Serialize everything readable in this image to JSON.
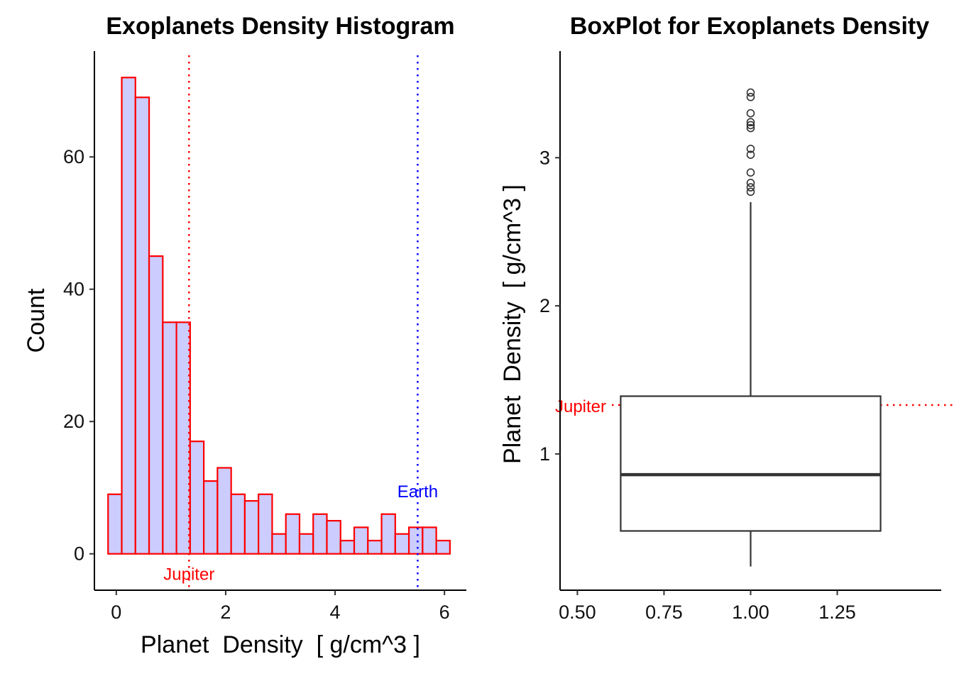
{
  "chart_data": [
    {
      "type": "bar",
      "subtype": "histogram",
      "title": "Exoplanets Density Histogram",
      "xlabel": "Planet  Density  [ g/cm^3 ]",
      "ylabel": "Count",
      "xlim": [
        -0.4,
        6.4
      ],
      "ylim": [
        -5.5,
        76
      ],
      "xticks": [
        0,
        2,
        4,
        6
      ],
      "yticks": [
        0,
        20,
        40,
        60
      ],
      "bins": [
        {
          "x0": -0.15,
          "x1": 0.1,
          "count": 9
        },
        {
          "x0": 0.1,
          "x1": 0.35,
          "count": 72
        },
        {
          "x0": 0.35,
          "x1": 0.6,
          "count": 69
        },
        {
          "x0": 0.6,
          "x1": 0.85,
          "count": 45
        },
        {
          "x0": 0.85,
          "x1": 1.1,
          "count": 35
        },
        {
          "x0": 1.1,
          "x1": 1.35,
          "count": 35
        },
        {
          "x0": 1.35,
          "x1": 1.6,
          "count": 17
        },
        {
          "x0": 1.6,
          "x1": 1.85,
          "count": 11
        },
        {
          "x0": 1.85,
          "x1": 2.1,
          "count": 13
        },
        {
          "x0": 2.1,
          "x1": 2.35,
          "count": 9
        },
        {
          "x0": 2.35,
          "x1": 2.6,
          "count": 8
        },
        {
          "x0": 2.6,
          "x1": 2.85,
          "count": 9
        },
        {
          "x0": 2.85,
          "x1": 3.1,
          "count": 3
        },
        {
          "x0": 3.1,
          "x1": 3.35,
          "count": 6
        },
        {
          "x0": 3.35,
          "x1": 3.6,
          "count": 3
        },
        {
          "x0": 3.6,
          "x1": 3.85,
          "count": 6
        },
        {
          "x0": 3.85,
          "x1": 4.1,
          "count": 5
        },
        {
          "x0": 4.1,
          "x1": 4.35,
          "count": 2
        },
        {
          "x0": 4.35,
          "x1": 4.6,
          "count": 4
        },
        {
          "x0": 4.6,
          "x1": 4.85,
          "count": 2
        },
        {
          "x0": 4.85,
          "x1": 5.1,
          "count": 6
        },
        {
          "x0": 5.1,
          "x1": 5.35,
          "count": 3
        },
        {
          "x0": 5.35,
          "x1": 5.6,
          "count": 4
        },
        {
          "x0": 5.6,
          "x1": 5.85,
          "count": 4
        },
        {
          "x0": 5.85,
          "x1": 6.1,
          "count": 2
        }
      ],
      "bar_fill": "#ccccff",
      "bar_edge": "#ff0000",
      "reference_lines": [
        {
          "label": "Jupiter",
          "x": 1.33,
          "color": "#ff0000",
          "style": "dotted",
          "label_y": -3
        },
        {
          "label": "Earth",
          "x": 5.51,
          "color": "#0000ff",
          "style": "dotted",
          "label_y": 9.5
        }
      ],
      "grid": false
    },
    {
      "type": "boxplot",
      "title": "BoxPlot for Exoplanets Density",
      "xlabel": "",
      "ylabel": "Planet  Density  [ g/cm^3 ]",
      "xlim": [
        0.45,
        1.55
      ],
      "ylim": [
        0.08,
        3.72
      ],
      "xticks": [
        "0.50",
        "0.75",
        "1.00",
        "1.25"
      ],
      "xtick_values": [
        0.5,
        0.75,
        1.0,
        1.25
      ],
      "yticks": [
        1,
        2,
        3
      ],
      "box": {
        "x": 1.0,
        "x_left": 0.625,
        "x_right": 1.375,
        "whisker_low": 0.24,
        "q1": 0.48,
        "median": 0.86,
        "q3": 1.39,
        "whisker_high": 2.7
      },
      "outliers": [
        3.44,
        3.41,
        3.3,
        3.24,
        3.22,
        3.2,
        3.06,
        3.02,
        2.9,
        2.83,
        2.8,
        2.77
      ],
      "reference_lines": [
        {
          "label": "Jupiter",
          "y": 1.33,
          "color": "#ff0000",
          "style": "dotted"
        }
      ],
      "grid": false
    }
  ]
}
